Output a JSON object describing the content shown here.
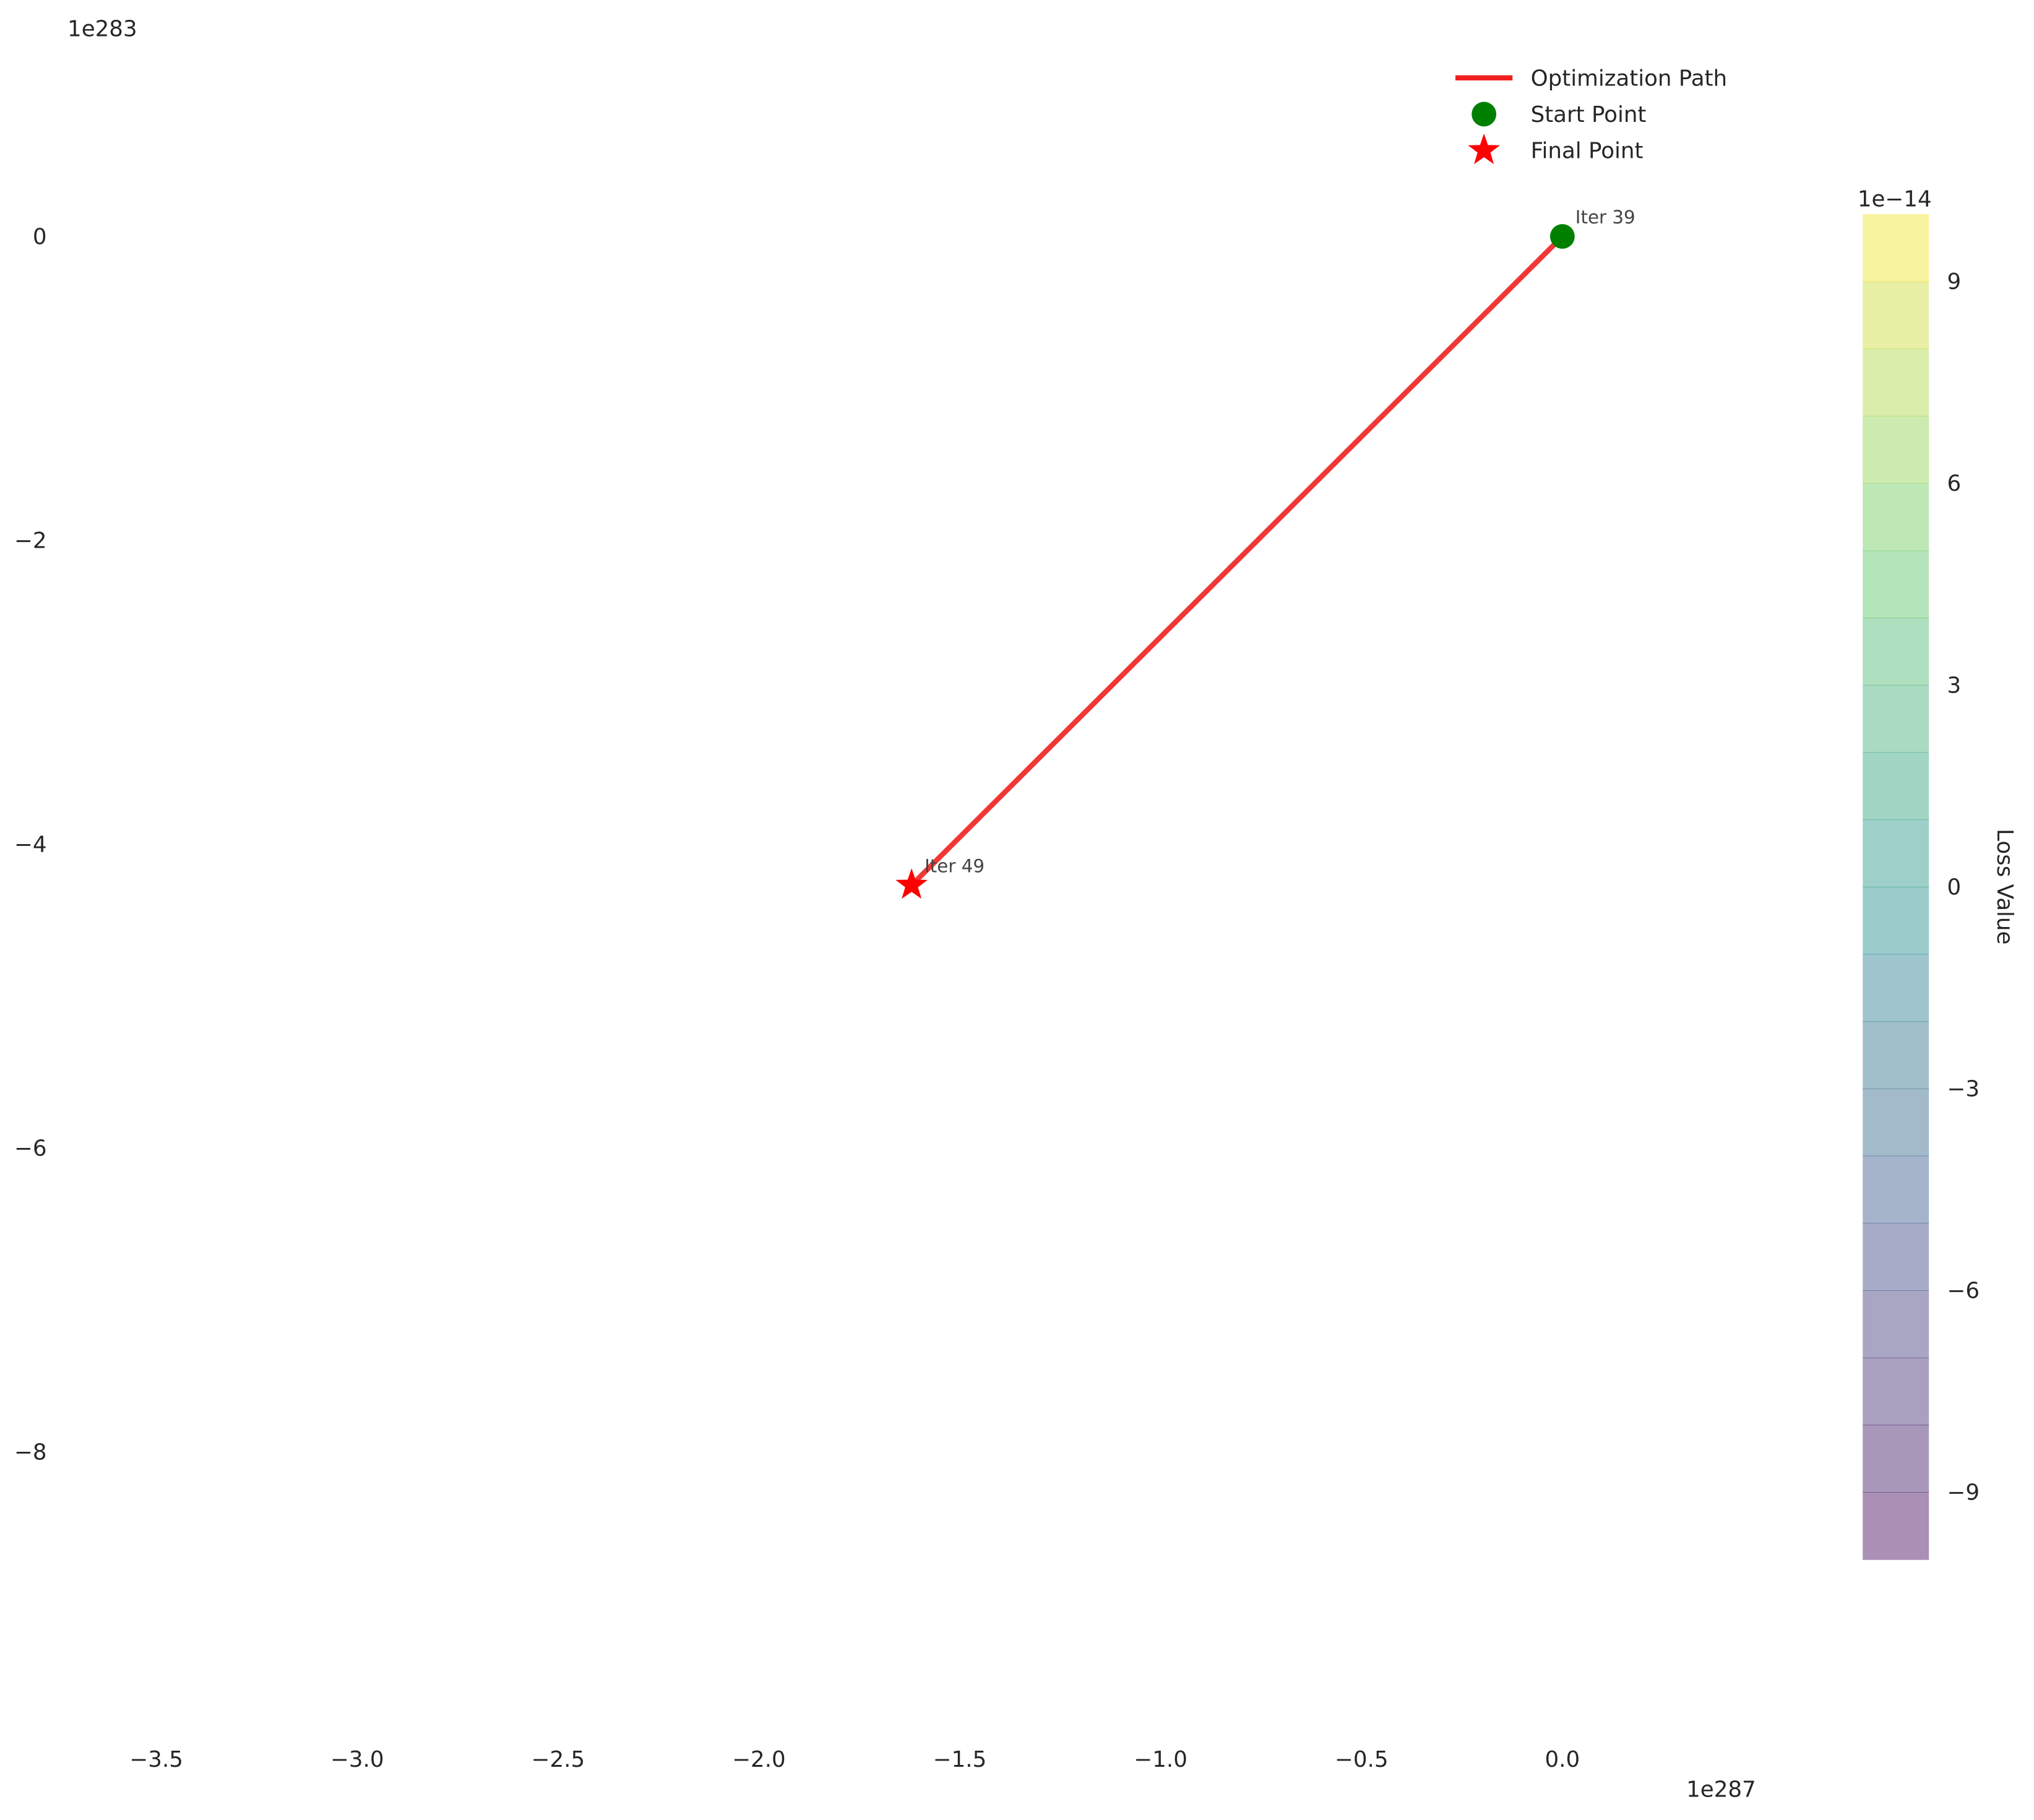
{
  "chart_data": {
    "type": "line",
    "x_offset_label": "1e287",
    "y_offset_label": "1e283",
    "xlim": [
      -3.76,
      0.47
    ],
    "ylim": [
      -9.8,
      1.3
    ],
    "xticks": [
      {
        "value": -3.5,
        "label": "−3.5"
      },
      {
        "value": -3.0,
        "label": "−3.0"
      },
      {
        "value": -2.5,
        "label": "−2.5"
      },
      {
        "value": -2.0,
        "label": "−2.0"
      },
      {
        "value": -1.5,
        "label": "−1.5"
      },
      {
        "value": -1.0,
        "label": "−1.0"
      },
      {
        "value": -0.5,
        "label": "−0.5"
      },
      {
        "value": 0,
        "label": "0.0"
      }
    ],
    "yticks": [
      0,
      {
        "value": -2,
        "label": "−2"
      },
      {
        "value": -4,
        "label": "−4"
      },
      {
        "value": -6,
        "label": "−6"
      },
      {
        "value": -8,
        "label": "−8"
      }
    ],
    "grid": false,
    "legend": "upper right",
    "series": [
      {
        "name": "Optimization Path",
        "color": "#f02020",
        "x": [
          0,
          -1.62
        ],
        "values": [
          0,
          -4.27
        ]
      },
      {
        "name": "Start Point",
        "color": "#008000",
        "marker": "circle",
        "x": [
          0
        ],
        "values": [
          0
        ]
      },
      {
        "name": "Final Point",
        "color": "#ff0000",
        "marker": "star",
        "x": [
          -1.62
        ],
        "values": [
          -4.27
        ]
      }
    ],
    "annotations": [
      {
        "text": "Iter 39",
        "x": 0,
        "y": 0
      },
      {
        "text": "Iter 49",
        "x": -1.62,
        "y": -4.27
      }
    ],
    "colorbar": {
      "label": "Loss Value",
      "offset_label": "1e−14",
      "lim": [
        -10,
        10
      ],
      "ticks": [
        {
          "value": -9,
          "label": "−9"
        },
        {
          "value": -6,
          "label": "−6"
        },
        {
          "value": -3,
          "label": "−3"
        },
        0,
        3,
        6,
        9
      ]
    }
  }
}
